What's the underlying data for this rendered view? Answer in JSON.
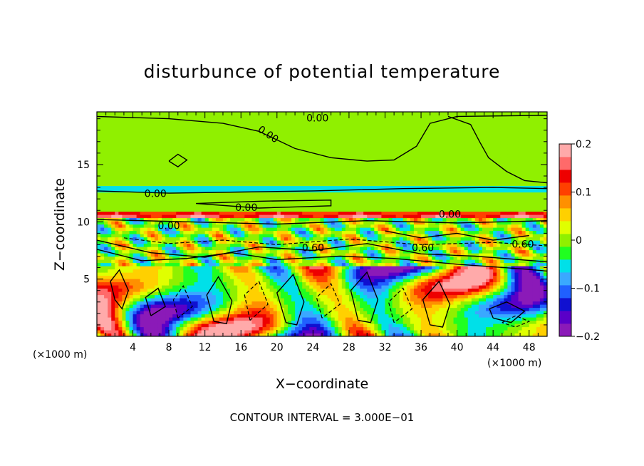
{
  "chart_data": {
    "type": "heatmap",
    "title": "disturbunce of potential temperature",
    "xlabel": "X−coordinate",
    "ylabel": "Z−coordinate",
    "x_unit_left": "(×1000 m)",
    "x_unit_right": "(×1000 m)",
    "xlim": [
      0,
      50
    ],
    "ylim": [
      0,
      19.6
    ],
    "x_ticks": [
      4,
      8,
      12,
      16,
      20,
      24,
      28,
      32,
      36,
      40,
      44,
      48
    ],
    "x_tick_labels": [
      "4",
      "8",
      "12",
      "16",
      "20",
      "24",
      "28",
      "32",
      "36",
      "40",
      "44",
      "48"
    ],
    "y_ticks": [
      5,
      10,
      15
    ],
    "y_tick_labels": [
      "5",
      "10",
      "15"
    ],
    "colorbar": {
      "range": [
        -0.2,
        0.2
      ],
      "ticks": [
        0.2,
        0.1,
        0,
        -0.1,
        -0.2
      ],
      "tick_labels": [
        "0.2",
        "0.1",
        "0",
        "−0.1",
        "−0.2"
      ],
      "colors": [
        "#8b1ab8",
        "#5a00c8",
        "#1010d0",
        "#2060ff",
        "#3aa8ff",
        "#00e0e8",
        "#20ff20",
        "#90f000",
        "#e0ff00",
        "#ffd000",
        "#ff9000",
        "#ff4000",
        "#ee0000",
        "#ff6a6a",
        "#ffaaaa"
      ]
    },
    "contour_labels": [
      {
        "text": "0.00",
        "x": 24.5,
        "y": 19.0
      },
      {
        "text": "0.00",
        "x": 19.0,
        "y": 17.6,
        "rotate": 34
      },
      {
        "text": "0.00",
        "x": 6.5,
        "y": 12.4
      },
      {
        "text": "0.00",
        "x": 16.6,
        "y": 11.2
      },
      {
        "text": "0.00",
        "x": 39.2,
        "y": 10.6
      },
      {
        "text": "0.00",
        "x": 8.0,
        "y": 9.6
      },
      {
        "text": "0.60",
        "x": 24.0,
        "y": 7.7
      },
      {
        "text": "0.60",
        "x": 36.2,
        "y": 7.7
      },
      {
        "text": "0.60",
        "x": 47.3,
        "y": 8.0
      }
    ],
    "contour_note": "CONTOUR INTERVAL = 3.000E−01"
  }
}
